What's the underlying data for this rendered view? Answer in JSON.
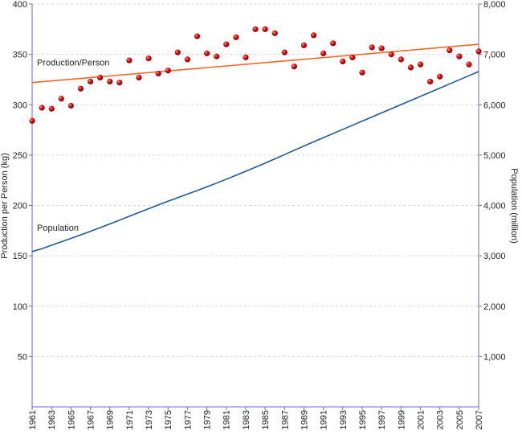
{
  "chart_data": {
    "type": "scatter",
    "x": [
      1961,
      1962,
      1963,
      1964,
      1965,
      1966,
      1967,
      1968,
      1969,
      1970,
      1971,
      1972,
      1973,
      1974,
      1975,
      1976,
      1977,
      1978,
      1979,
      1980,
      1981,
      1982,
      1983,
      1984,
      1985,
      1986,
      1987,
      1988,
      1989,
      1990,
      1991,
      1992,
      1993,
      1994,
      1995,
      1996,
      1997,
      1998,
      1999,
      2000,
      2001,
      2002,
      2003,
      2004,
      2005,
      2006,
      2007
    ],
    "xlim": [
      1961,
      2007
    ],
    "xticks": [
      1961,
      1963,
      1965,
      1967,
      1969,
      1971,
      1973,
      1975,
      1977,
      1979,
      1981,
      1983,
      1985,
      1987,
      1989,
      1991,
      1993,
      1995,
      1997,
      1999,
      2001,
      2003,
      2005,
      2007
    ],
    "ylabel": "Production per Person (kg)",
    "y2label": "Population (million)",
    "ylim": [
      0,
      400
    ],
    "yticks": [
      50,
      100,
      150,
      200,
      250,
      300,
      350,
      400
    ],
    "y2lim": [
      0,
      8000
    ],
    "y2ticks": [
      {
        "value": 1000,
        "label": "1,000"
      },
      {
        "value": 2000,
        "label": "2,000"
      },
      {
        "value": 3000,
        "label": "3,000"
      },
      {
        "value": 4000,
        "label": "4,000"
      },
      {
        "value": 5000,
        "label": "5,000"
      },
      {
        "value": 6000,
        "label": "6,000"
      },
      {
        "value": 7000,
        "label": "7,000"
      },
      {
        "value": 8000,
        "label": "8,000"
      }
    ],
    "grid": true,
    "series": [
      {
        "type": "scatter",
        "color": "#cc0000",
        "values": [
          284,
          297,
          296,
          306,
          299,
          316,
          323,
          327,
          323,
          322,
          344,
          327,
          346,
          331,
          334,
          352,
          345,
          368,
          351,
          348,
          360,
          367,
          347,
          375,
          375,
          371,
          352,
          338,
          359,
          369,
          351,
          361,
          343,
          347,
          332,
          357,
          356,
          350,
          345,
          337,
          340,
          323,
          328,
          354,
          348,
          340,
          353
        ]
      },
      {
        "name": "Production/Person",
        "type": "line",
        "color": "#f26522",
        "x": [
          1961,
          2007
        ],
        "values": [
          322,
          360
        ]
      },
      {
        "name": "Population",
        "type": "line",
        "axis": "y2",
        "color": "#1f5a96",
        "values": [
          3085,
          3140,
          3209,
          3278,
          3346,
          3416,
          3485,
          3558,
          3632,
          3707,
          3784,
          3860,
          3935,
          4010,
          4083,
          4154,
          4225,
          4296,
          4369,
          4444,
          4520,
          4599,
          4679,
          4759,
          4840,
          4924,
          5009,
          5095,
          5180,
          5264,
          5346,
          5428,
          5510,
          5592,
          5674,
          5756,
          5838,
          5920,
          6002,
          6084,
          6166,
          6248,
          6330,
          6412,
          6494,
          6576,
          6658
        ]
      }
    ]
  }
}
